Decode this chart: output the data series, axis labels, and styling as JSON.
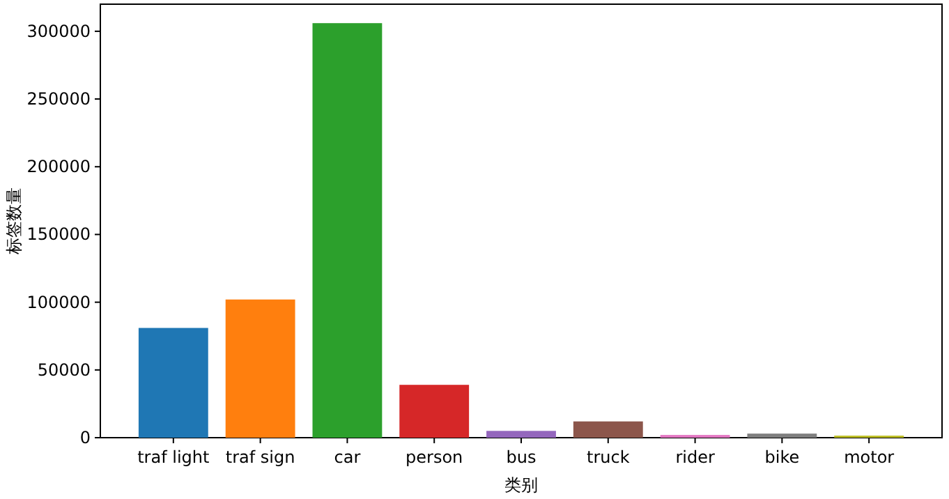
{
  "chart_data": {
    "type": "bar",
    "xlabel": "类别",
    "ylabel": "标签数量",
    "categories": [
      "traf light",
      "traf sign",
      "car",
      "person",
      "bus",
      "truck",
      "rider",
      "bike",
      "motor"
    ],
    "values": [
      81000,
      102000,
      306000,
      39000,
      5000,
      12000,
      2000,
      3000,
      1500
    ],
    "colors": [
      "#1f77b4",
      "#ff7f0e",
      "#2ca02c",
      "#d62728",
      "#9467bd",
      "#8c564b",
      "#e377c2",
      "#7f7f7f",
      "#bcbd22"
    ],
    "ylim": [
      0,
      320000
    ],
    "yticks": [
      0,
      50000,
      100000,
      150000,
      200000,
      250000,
      300000
    ]
  }
}
